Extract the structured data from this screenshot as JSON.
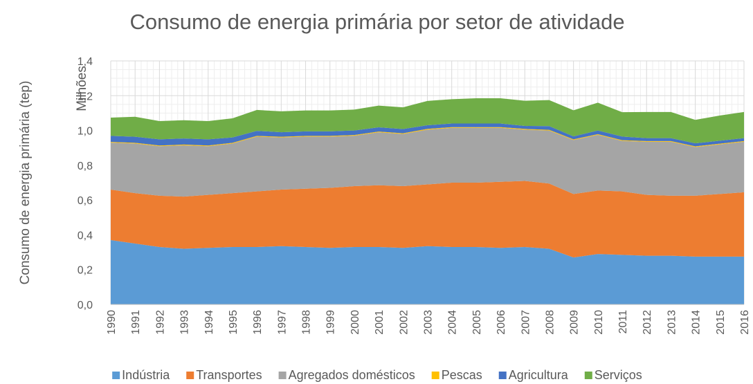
{
  "chart_data": {
    "type": "stacked_area",
    "title": "Consumo de energia primária por setor de atividade",
    "ylabel": "Consumo de energia primária (tep)",
    "y_unit": "Milhões",
    "categories": [
      "1990",
      "1991",
      "1992",
      "1993",
      "1994",
      "1995",
      "1996",
      "1997",
      "1998",
      "1999",
      "2000",
      "2001",
      "2002",
      "2003",
      "2004",
      "2005",
      "2006",
      "2007",
      "2008",
      "2009",
      "2010",
      "2011",
      "2012",
      "2013",
      "2014",
      "2015",
      "2016"
    ],
    "series": [
      {
        "name": "Indústria",
        "color": "#5b9bd5",
        "values": [
          0.37,
          0.35,
          0.33,
          0.32,
          0.325,
          0.33,
          0.33,
          0.335,
          0.33,
          0.325,
          0.33,
          0.33,
          0.325,
          0.335,
          0.33,
          0.33,
          0.325,
          0.33,
          0.32,
          0.27,
          0.29,
          0.285,
          0.28,
          0.28,
          0.275,
          0.275,
          0.275
        ]
      },
      {
        "name": "Transportes",
        "color": "#ed7d31",
        "values": [
          0.29,
          0.29,
          0.295,
          0.3,
          0.305,
          0.31,
          0.32,
          0.325,
          0.335,
          0.345,
          0.35,
          0.355,
          0.355,
          0.355,
          0.37,
          0.37,
          0.38,
          0.38,
          0.375,
          0.365,
          0.365,
          0.365,
          0.35,
          0.345,
          0.35,
          0.36,
          0.37
        ]
      },
      {
        "name": "Agregados domésticos",
        "color": "#a5a5a5",
        "values": [
          0.27,
          0.285,
          0.285,
          0.295,
          0.28,
          0.285,
          0.315,
          0.3,
          0.3,
          0.295,
          0.29,
          0.305,
          0.3,
          0.315,
          0.315,
          0.315,
          0.31,
          0.295,
          0.305,
          0.31,
          0.32,
          0.29,
          0.305,
          0.31,
          0.28,
          0.285,
          0.29
        ]
      },
      {
        "name": "Pescas",
        "color": "#ffc000",
        "values": [
          0.004,
          0.004,
          0.004,
          0.004,
          0.004,
          0.004,
          0.004,
          0.004,
          0.004,
          0.004,
          0.004,
          0.004,
          0.004,
          0.004,
          0.004,
          0.004,
          0.004,
          0.004,
          0.004,
          0.004,
          0.004,
          0.004,
          0.004,
          0.004,
          0.004,
          0.004,
          0.004
        ]
      },
      {
        "name": "Agricultura",
        "color": "#4472c4",
        "values": [
          0.035,
          0.035,
          0.035,
          0.035,
          0.035,
          0.031,
          0.029,
          0.026,
          0.026,
          0.026,
          0.026,
          0.024,
          0.024,
          0.021,
          0.021,
          0.021,
          0.021,
          0.017,
          0.021,
          0.017,
          0.021,
          0.021,
          0.017,
          0.017,
          0.017,
          0.017,
          0.017
        ]
      },
      {
        "name": "Serviços",
        "color": "#70ad47",
        "values": [
          0.105,
          0.115,
          0.105,
          0.105,
          0.105,
          0.11,
          0.12,
          0.12,
          0.12,
          0.12,
          0.12,
          0.125,
          0.125,
          0.14,
          0.14,
          0.145,
          0.145,
          0.145,
          0.15,
          0.15,
          0.16,
          0.14,
          0.15,
          0.15,
          0.135,
          0.145,
          0.15
        ]
      }
    ],
    "ylim": [
      0,
      1.4
    ],
    "yticks": [
      {
        "value": 0,
        "label": "0,0"
      },
      {
        "value": 0.2,
        "label": "0,2"
      },
      {
        "value": 0.4,
        "label": "0,4"
      },
      {
        "value": 0.6,
        "label": "0,6"
      },
      {
        "value": 0.8,
        "label": "0,8"
      },
      {
        "value": 1.0,
        "label": "1,0"
      },
      {
        "value": 1.2,
        "label": "1,2"
      },
      {
        "value": 1.4,
        "label": "1,4"
      }
    ],
    "grid": true,
    "legend": "bottom"
  }
}
